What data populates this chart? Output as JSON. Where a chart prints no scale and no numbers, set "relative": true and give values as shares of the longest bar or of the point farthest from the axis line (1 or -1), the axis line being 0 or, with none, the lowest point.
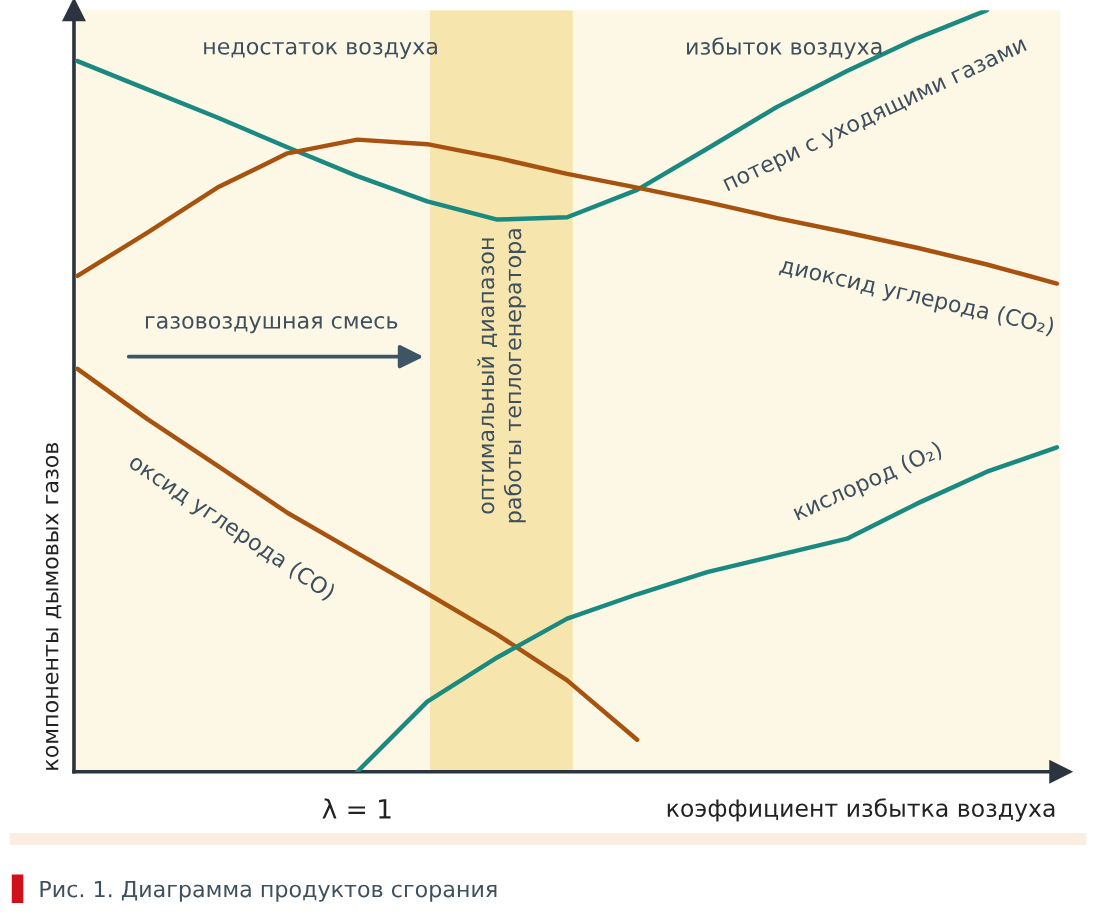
{
  "chart_data": {
    "type": "line",
    "relative": true,
    "xlabel": "коэффициент избытка воздуха",
    "ylabel": "компоненты дымовых газов",
    "categories": [
      null,
      null,
      null,
      null,
      null,
      null,
      null,
      null,
      null,
      null,
      null,
      null,
      null,
      null,
      null
    ],
    "series": [
      {
        "name": "потери с уходящими газами",
        "color": "#1a8a80",
        "values": [
          0.933,
          0.896,
          0.859,
          0.82,
          0.782,
          0.749,
          0.725,
          0.728,
          0.764,
          0.818,
          0.873,
          0.92,
          0.963,
          1,
          null
        ]
      },
      {
        "name": "диоксид углерода (CO₂)",
        "color": "#a8520f",
        "values": [
          0.651,
          0.708,
          0.767,
          0.812,
          0.83,
          0.824,
          0.806,
          0.785,
          0.767,
          0.748,
          0.727,
          0.708,
          0.688,
          0.666,
          0.641
        ]
      },
      {
        "name": "оксид углерода (CO)",
        "color": "#a8520f",
        "values": [
          0.529,
          0.463,
          0.402,
          0.34,
          0.287,
          0.234,
          0.18,
          0.12,
          0.042,
          null,
          null,
          null,
          null,
          null,
          null
        ]
      },
      {
        "name": "кислород (O₂)",
        "color": "#1a8a80",
        "values": [
          null,
          null,
          null,
          null,
          0,
          0.092,
          0.15,
          0.201,
          0.233,
          0.262,
          0.284,
          0.306,
          0.352,
          0.394,
          0.426
        ]
      }
    ],
    "annotations": [
      "недостаток воздуха",
      "избыток воздуха",
      "газовоздушная смесь",
      "оптимальный диапазон\nработы теплогенератора",
      "λ = 1",
      "Рис. 1. Диаграмма продуктов сгорания"
    ],
    "marker": "none",
    "line_style": "solid"
  }
}
